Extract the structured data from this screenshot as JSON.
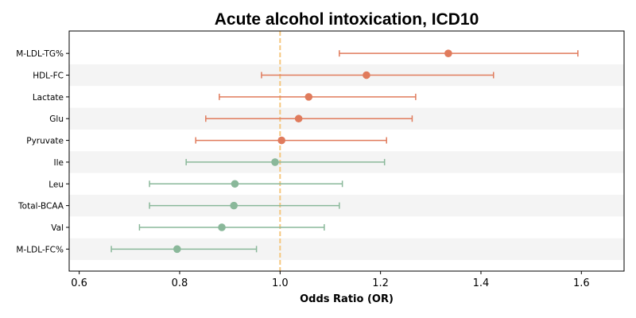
{
  "chart_data": {
    "type": "forest",
    "title": "Acute alcohol intoxication, ICD10",
    "xlabel": "Odds Ratio (OR)",
    "ylabel": "",
    "xlim": [
      0.58,
      1.685
    ],
    "xticks": [
      0.6,
      0.8,
      1.0,
      1.2,
      1.4,
      1.6
    ],
    "xtick_labels": [
      "0.6",
      "0.8",
      "1.0",
      "1.2",
      "1.4",
      "1.6"
    ],
    "reference_line": 1.0,
    "grid": false,
    "rows": [
      {
        "label": "M-LDL-TG%",
        "or": 1.335,
        "lower": 1.118,
        "upper": 1.593,
        "color": "#e07b5c"
      },
      {
        "label": "HDL-FC",
        "or": 1.172,
        "lower": 0.963,
        "upper": 1.425,
        "color": "#e07b5c"
      },
      {
        "label": "Lactate",
        "or": 1.057,
        "lower": 0.879,
        "upper": 1.27,
        "color": "#e07b5c"
      },
      {
        "label": "Glu",
        "or": 1.037,
        "lower": 0.852,
        "upper": 1.263,
        "color": "#e07b5c"
      },
      {
        "label": "Pyruvate",
        "or": 1.003,
        "lower": 0.832,
        "upper": 1.212,
        "color": "#e07b5c"
      },
      {
        "label": "Ile",
        "or": 0.99,
        "lower": 0.813,
        "upper": 1.208,
        "color": "#8ab89a"
      },
      {
        "label": "Leu",
        "or": 0.91,
        "lower": 0.74,
        "upper": 1.124,
        "color": "#8ab89a"
      },
      {
        "label": "Total-BCAA",
        "or": 0.908,
        "lower": 0.74,
        "upper": 1.118,
        "color": "#8ab89a"
      },
      {
        "label": "Val",
        "or": 0.884,
        "lower": 0.72,
        "upper": 1.088,
        "color": "#8ab89a"
      },
      {
        "label": "M-LDL-FC%",
        "or": 0.795,
        "lower": 0.664,
        "upper": 0.953,
        "color": "#8ab89a"
      }
    ],
    "colors": {
      "positive": "#e07b5c",
      "negative": "#8ab89a",
      "reference_line": "#f5c77e",
      "band": "#f4f4f4"
    }
  }
}
